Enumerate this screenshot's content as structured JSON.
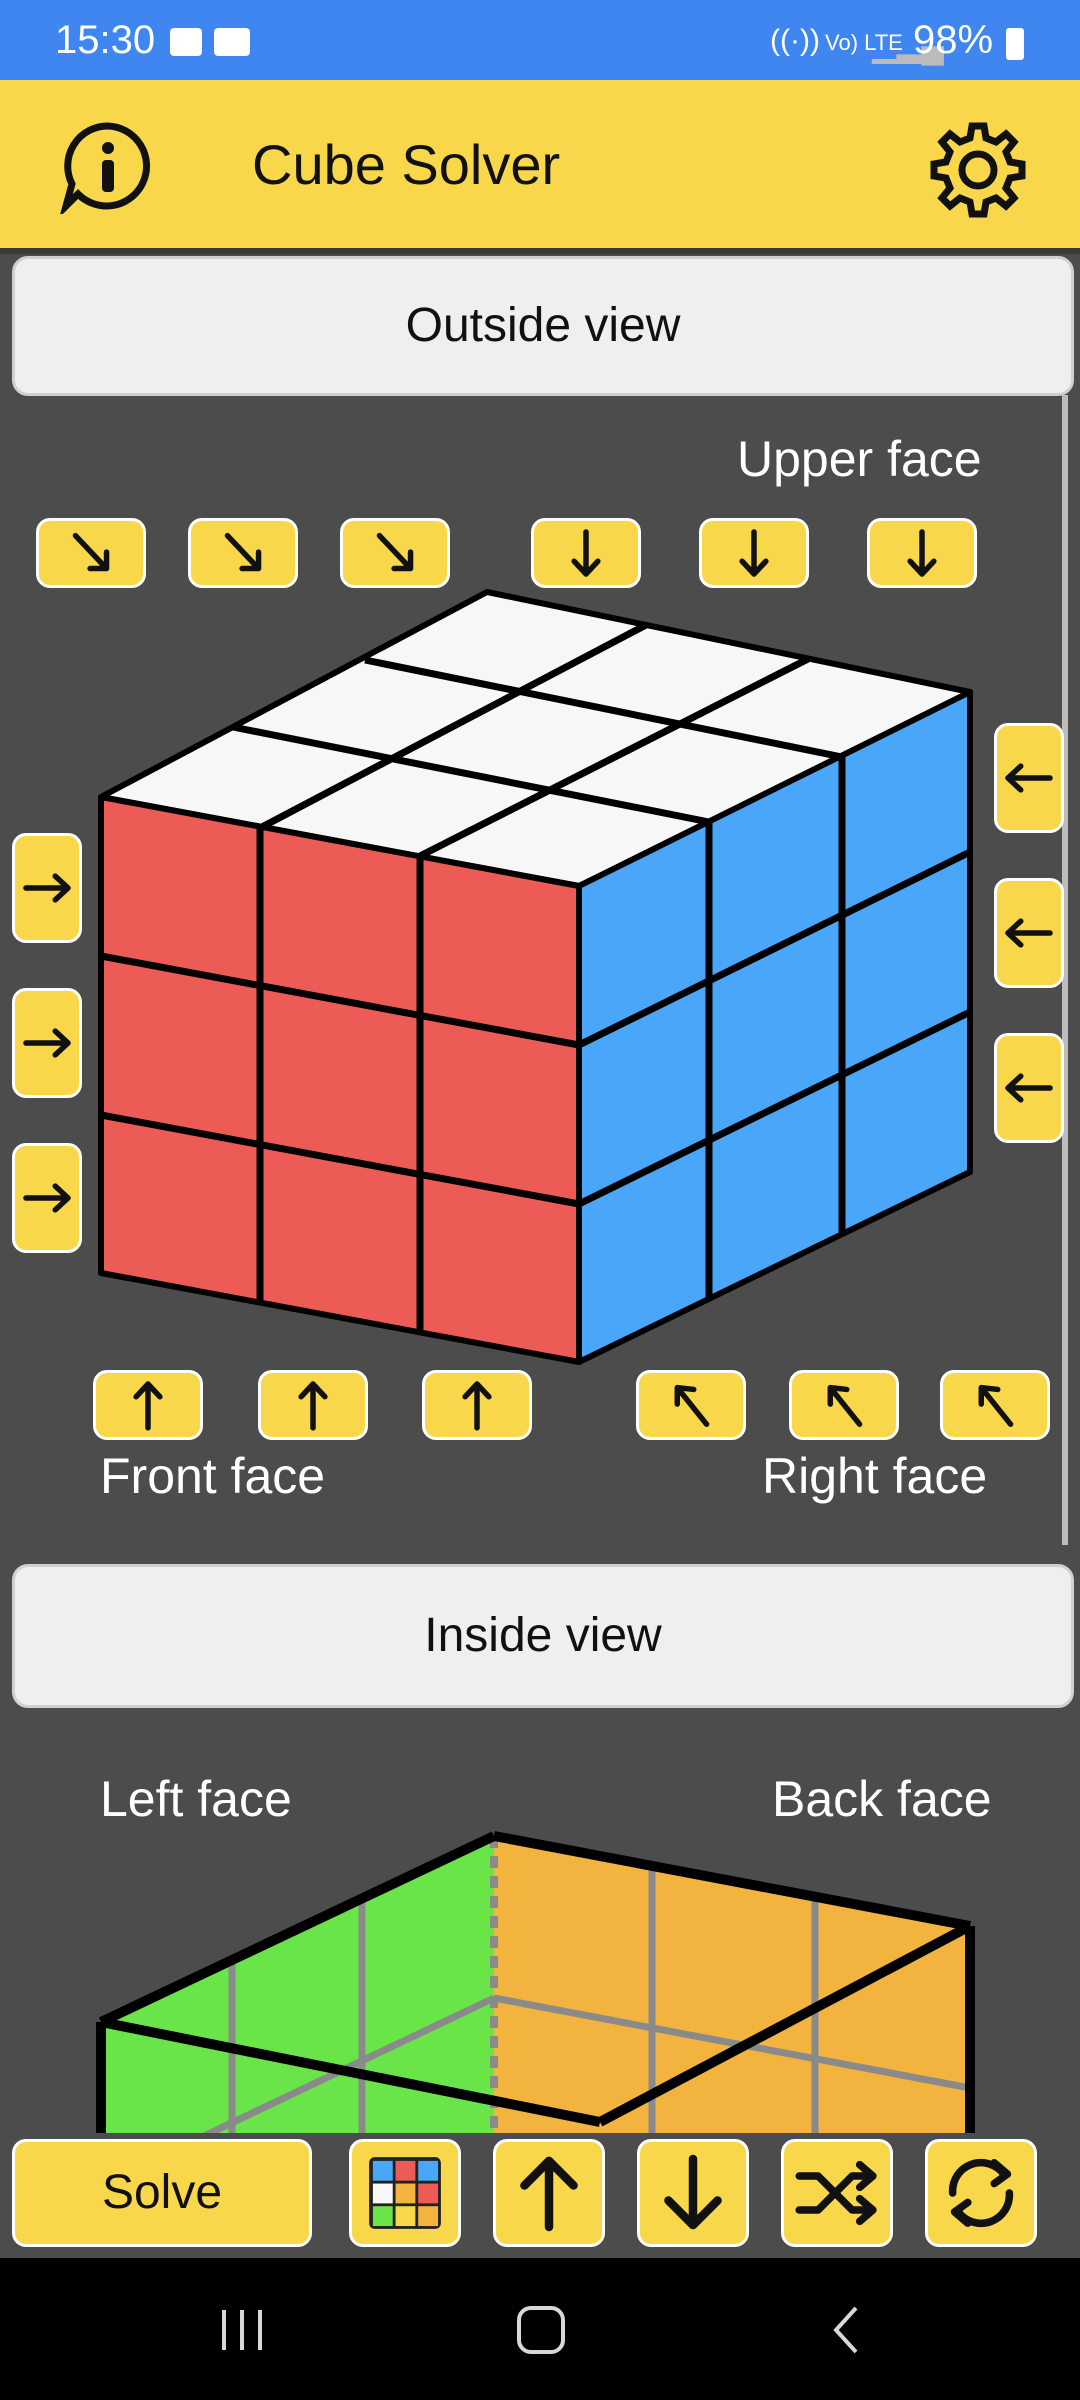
{
  "status": {
    "time": "15:30",
    "battery": "98%",
    "network": "Vo) LTE"
  },
  "appbar": {
    "title": "Cube Solver",
    "info_icon": "info-icon",
    "settings_icon": "gear-icon"
  },
  "outside": {
    "label": "Outside view",
    "upper": "Upper face",
    "front": "Front face",
    "right": "Right face"
  },
  "inside": {
    "label": "Inside view",
    "left": "Left face",
    "back": "Back face"
  },
  "colors": {
    "white": "#f7f7f7",
    "red": "#ec5b55",
    "blue": "#49a6f8",
    "green": "#69e54a",
    "orange": "#f2b43f",
    "yellow": "#f8d84a"
  },
  "bottom": {
    "solve": "Solve"
  },
  "nav": {
    "recents": "recents-icon",
    "home": "home-icon",
    "back": "back-icon"
  }
}
